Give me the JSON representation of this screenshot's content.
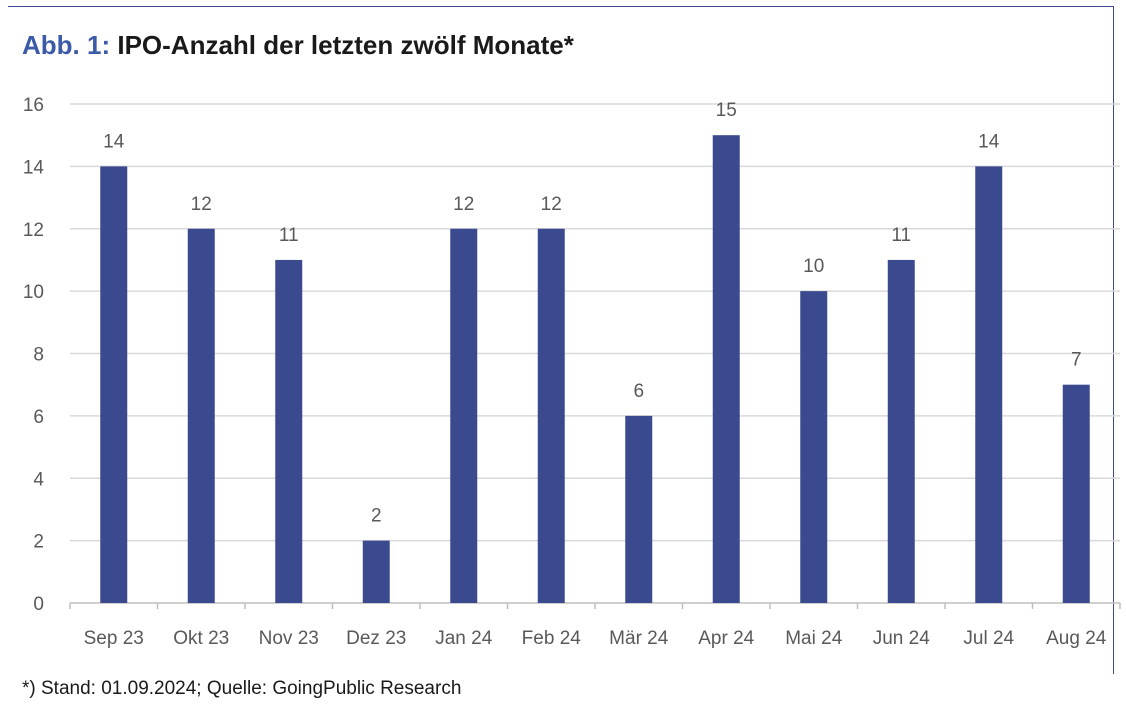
{
  "title": {
    "prefix": "Abb. 1:",
    "text": "IPO-Anzahl der letzten zwölf Monate*"
  },
  "footnote": "*) Stand: 01.09.2024; Quelle: GoingPublic Research",
  "colors": {
    "bar": "#3b4a8f",
    "grid": "#d9d9d9",
    "axis_text": "#595959",
    "frame": "#3b4a8f",
    "title_prefix": "#3b5aa7"
  },
  "chart_data": {
    "type": "bar",
    "categories": [
      "Sep 23",
      "Okt 23",
      "Nov 23",
      "Dez 23",
      "Jan 24",
      "Feb 24",
      "Mär 24",
      "Apr 24",
      "Mai 24",
      "Jun 24",
      "Jul 24",
      "Aug 24"
    ],
    "values": [
      14,
      12,
      11,
      2,
      12,
      12,
      6,
      15,
      10,
      11,
      14,
      7
    ],
    "ylim": [
      0,
      16
    ],
    "yticks": [
      0,
      2,
      4,
      6,
      8,
      10,
      12,
      14,
      16
    ],
    "grid": true,
    "data_labels": true,
    "xlabel": "",
    "ylabel": ""
  }
}
